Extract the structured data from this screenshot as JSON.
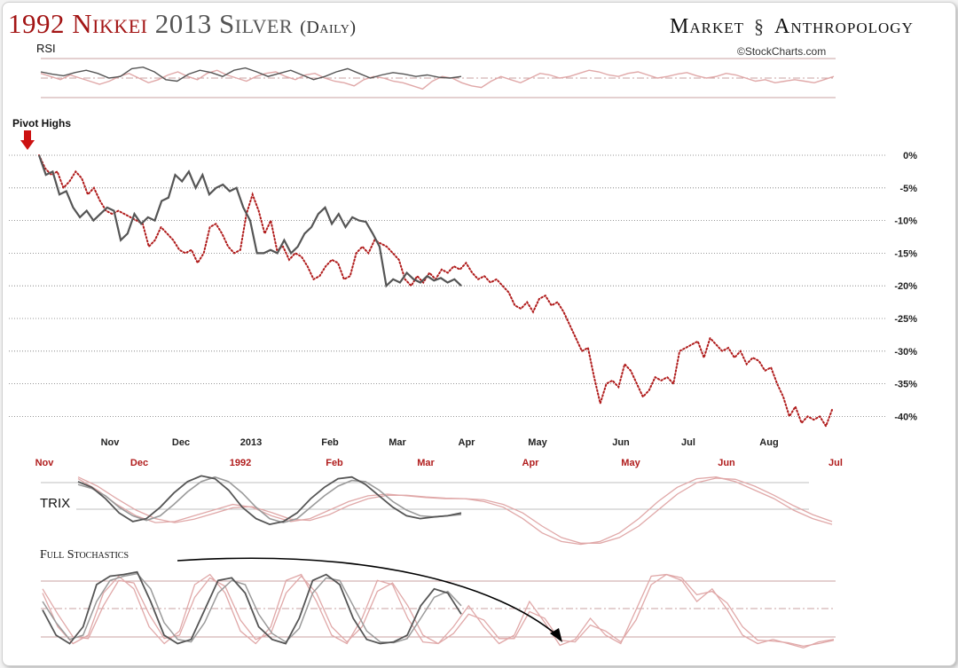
{
  "header": {
    "title_part1": "1992 Nikkei",
    "title_part2": "2013 Silver",
    "title_part3": "(Daily)",
    "brand_left": "Market",
    "brand_right": "Anthropology",
    "brand_icon": "dna-helix-icon",
    "credit": "©StockCharts.com"
  },
  "colors": {
    "silver": "#555555",
    "nikkei": "#b01c1c",
    "nikkei_light": "#e0a8a8",
    "silver_light": "#9a9a9a",
    "grid": "#aaaaaa",
    "band": "#c9a0a0"
  },
  "chart_data": [
    {
      "type": "line",
      "panel": "rsi",
      "title": "RSI",
      "series": [
        {
          "name": "2013 Silver",
          "y": [
            58,
            55,
            53,
            57,
            60,
            56,
            50,
            52,
            62,
            64,
            58,
            48,
            46,
            55,
            60,
            57,
            52,
            60,
            63,
            58,
            52,
            56,
            60,
            54,
            48,
            52,
            58,
            62,
            56,
            50,
            54,
            57,
            55,
            52,
            54,
            51,
            50,
            52
          ]
        },
        {
          "name": "1992 Nikkei",
          "y": [
            56,
            52,
            48,
            54,
            50,
            46,
            42,
            46,
            52,
            56,
            50,
            44,
            48,
            54,
            58,
            52,
            48,
            56,
            60,
            54,
            50,
            46,
            52,
            56,
            58,
            52,
            48,
            54,
            56,
            50,
            46,
            44,
            40,
            48,
            52,
            50,
            46,
            44,
            40,
            36,
            46,
            52,
            50,
            44,
            40,
            38,
            46,
            52,
            48,
            44,
            50,
            56,
            54,
            50,
            52,
            56,
            60,
            58,
            54,
            52,
            56,
            58,
            54,
            50,
            52,
            55,
            57,
            53,
            50,
            52,
            56,
            54,
            50,
            46,
            48,
            44,
            46,
            48,
            46,
            44,
            48,
            52
          ]
        }
      ]
    },
    {
      "type": "line",
      "panel": "main",
      "annotation": "Pivot Highs",
      "ylim": [
        -42,
        0
      ],
      "yticks": [
        "0%",
        "-5%",
        "-10%",
        "-15%",
        "-20%",
        "-25%",
        "-30%",
        "-35%",
        "-40%"
      ],
      "x_labels_top": [
        "Nov",
        "Dec",
        "2013",
        "Feb",
        "Mar",
        "Apr",
        "May",
        "Jun",
        "Jul",
        "Aug"
      ],
      "x_labels_bottom": [
        "Nov",
        "Dec",
        "1992",
        "Feb",
        "Mar",
        "Apr",
        "May",
        "Jun",
        "Jul"
      ],
      "series": [
        {
          "name": "2013 Silver",
          "style": "solid",
          "y": [
            0,
            -3,
            -2.5,
            -6,
            -5.5,
            -8,
            -9.5,
            -8.5,
            -10,
            -9,
            -8,
            -8.5,
            -13,
            -12,
            -9,
            -10.5,
            -9.5,
            -10,
            -7,
            -6.5,
            -3,
            -4,
            -2.5,
            -5,
            -3,
            -6,
            -5,
            -4.5,
            -5.5,
            -5,
            -8,
            -10,
            -15,
            -15,
            -14.5,
            -15,
            -13,
            -15,
            -14,
            -12,
            -11,
            -9,
            -8,
            -10.5,
            -9,
            -11,
            -9.5,
            -10,
            -10.2,
            -12,
            -14,
            -20,
            -19,
            -19.5,
            -18,
            -19,
            -19.5,
            -18.5,
            -19.2,
            -18.8,
            -19.5,
            -19,
            -20
          ]
        },
        {
          "name": "1992 Nikkei",
          "style": "dotted",
          "y": [
            0,
            -2,
            -3,
            -2.5,
            -5,
            -4,
            -2.5,
            -3.5,
            -6,
            -5,
            -7,
            -8.5,
            -9,
            -8.5,
            -9,
            -9.5,
            -10,
            -10.5,
            -14,
            -13,
            -11,
            -12,
            -13,
            -14.5,
            -15,
            -14.5,
            -16.5,
            -15,
            -11,
            -10.5,
            -12,
            -14,
            -15,
            -14.5,
            -9,
            -6,
            -8.5,
            -12,
            -10,
            -14.5,
            -14,
            -16,
            -15,
            -15.5,
            -17,
            -19,
            -18.5,
            -17,
            -16,
            -16.5,
            -19,
            -18.5,
            -15,
            -14,
            -15,
            -13,
            -13.5,
            -14,
            -15,
            -16,
            -19,
            -20,
            -18.5,
            -19.5,
            -18,
            -19,
            -17.5,
            -18,
            -17,
            -17.5,
            -16.5,
            -18,
            -19,
            -18.5,
            -19.5,
            -19,
            -20,
            -21,
            -23,
            -23.5,
            -22.5,
            -24,
            -22,
            -21.5,
            -23,
            -22.5,
            -24,
            -26,
            -28,
            -30,
            -29.5,
            -34,
            -38,
            -35,
            -34.5,
            -35.5,
            -32,
            -33,
            -35,
            -37,
            -36,
            -34,
            -34.5,
            -34,
            -35,
            -30,
            -29.5,
            -29,
            -28.5,
            -31,
            -28,
            -29,
            -30,
            -29.5,
            -31,
            -30,
            -32,
            -31,
            -31.5,
            -33,
            -32.5,
            -35,
            -37,
            -40,
            -38.5,
            -41,
            -40,
            -40.5,
            -40,
            -41.5,
            -39
          ]
        }
      ]
    },
    {
      "type": "line",
      "panel": "trix",
      "title": "TRIX",
      "series": [
        {
          "name": "2013 Silver",
          "y": [
            0.3,
            0.2,
            0.0,
            -0.25,
            -0.4,
            -0.35,
            -0.15,
            0.1,
            0.3,
            0.4,
            0.35,
            0.15,
            -0.15,
            -0.35,
            -0.45,
            -0.4,
            -0.25,
            0.0,
            0.2,
            0.35,
            0.38,
            0.25,
            0.05,
            -0.15,
            -0.3,
            -0.35,
            -0.32,
            -0.3,
            -0.25
          ]
        },
        {
          "name": "2013 Silver signal",
          "y": [
            0.25,
            0.18,
            0.05,
            -0.15,
            -0.3,
            -0.38,
            -0.3,
            -0.1,
            0.12,
            0.3,
            0.38,
            0.3,
            0.1,
            -0.15,
            -0.35,
            -0.42,
            -0.35,
            -0.15,
            0.05,
            0.22,
            0.32,
            0.3,
            0.15,
            -0.05,
            -0.2,
            -0.3,
            -0.32,
            -0.3,
            -0.28
          ]
        },
        {
          "name": "1992 Nikkei",
          "y": [
            0.35,
            0.15,
            -0.1,
            -0.3,
            -0.42,
            -0.4,
            -0.3,
            -0.2,
            -0.1,
            -0.15,
            -0.3,
            -0.4,
            -0.35,
            -0.2,
            -0.05,
            0.05,
            0.08,
            0.05,
            0.02,
            0.0,
            0.0,
            -0.05,
            -0.15,
            -0.35,
            -0.6,
            -0.75,
            -0.8,
            -0.75,
            -0.6,
            -0.35,
            -0.05,
            0.2,
            0.35,
            0.38,
            0.3,
            0.15,
            0.0,
            -0.2,
            -0.35,
            -0.45
          ]
        },
        {
          "name": "1992 Nikkei signal",
          "y": [
            0.38,
            0.22,
            0.0,
            -0.2,
            -0.35,
            -0.42,
            -0.36,
            -0.26,
            -0.16,
            -0.14,
            -0.24,
            -0.36,
            -0.38,
            -0.28,
            -0.12,
            0.0,
            0.06,
            0.06,
            0.03,
            0.01,
            0.0,
            -0.02,
            -0.1,
            -0.25,
            -0.48,
            -0.68,
            -0.78,
            -0.78,
            -0.68,
            -0.48,
            -0.2,
            0.08,
            0.28,
            0.36,
            0.34,
            0.22,
            0.06,
            -0.12,
            -0.28,
            -0.4
          ]
        }
      ]
    },
    {
      "type": "line",
      "panel": "stochastics",
      "title": "Full Stochastics",
      "series": [
        {
          "name": "2013 Silver %K",
          "y": [
            50,
            20,
            10,
            30,
            80,
            90,
            92,
            95,
            60,
            20,
            10,
            15,
            50,
            85,
            88,
            70,
            30,
            15,
            10,
            40,
            85,
            92,
            80,
            40,
            15,
            10,
            12,
            20,
            55,
            75,
            70,
            45
          ]
        },
        {
          "name": "2013 Silver %D",
          "y": [
            60,
            35,
            15,
            20,
            60,
            85,
            90,
            93,
            75,
            35,
            15,
            12,
            35,
            70,
            85,
            80,
            45,
            22,
            12,
            28,
            70,
            88,
            85,
            55,
            25,
            12,
            11,
            16,
            40,
            65,
            72,
            55
          ]
        },
        {
          "name": "1992 Nikkei %K",
          "y": [
            70,
            30,
            10,
            20,
            70,
            90,
            75,
            30,
            10,
            25,
            80,
            92,
            70,
            25,
            10,
            30,
            85,
            92,
            60,
            20,
            10,
            40,
            85,
            80,
            40,
            12,
            10,
            30,
            55,
            30,
            10,
            20,
            60,
            35,
            8,
            15,
            40,
            20,
            10,
            50,
            90,
            92,
            85,
            60,
            75,
            50,
            20,
            10,
            15,
            10,
            5,
            12,
            15
          ]
        },
        {
          "name": "1992 Nikkei %D",
          "y": [
            75,
            45,
            18,
            16,
            55,
            85,
            82,
            45,
            16,
            20,
            65,
            88,
            78,
            38,
            15,
            22,
            70,
            90,
            70,
            30,
            12,
            30,
            72,
            82,
            55,
            20,
            10,
            22,
            45,
            38,
            16,
            16,
            48,
            40,
            14,
            12,
            32,
            25,
            12,
            38,
            80,
            92,
            88,
            68,
            72,
            58,
            30,
            14,
            13,
            11,
            7,
            10,
            14
          ]
        }
      ]
    }
  ]
}
